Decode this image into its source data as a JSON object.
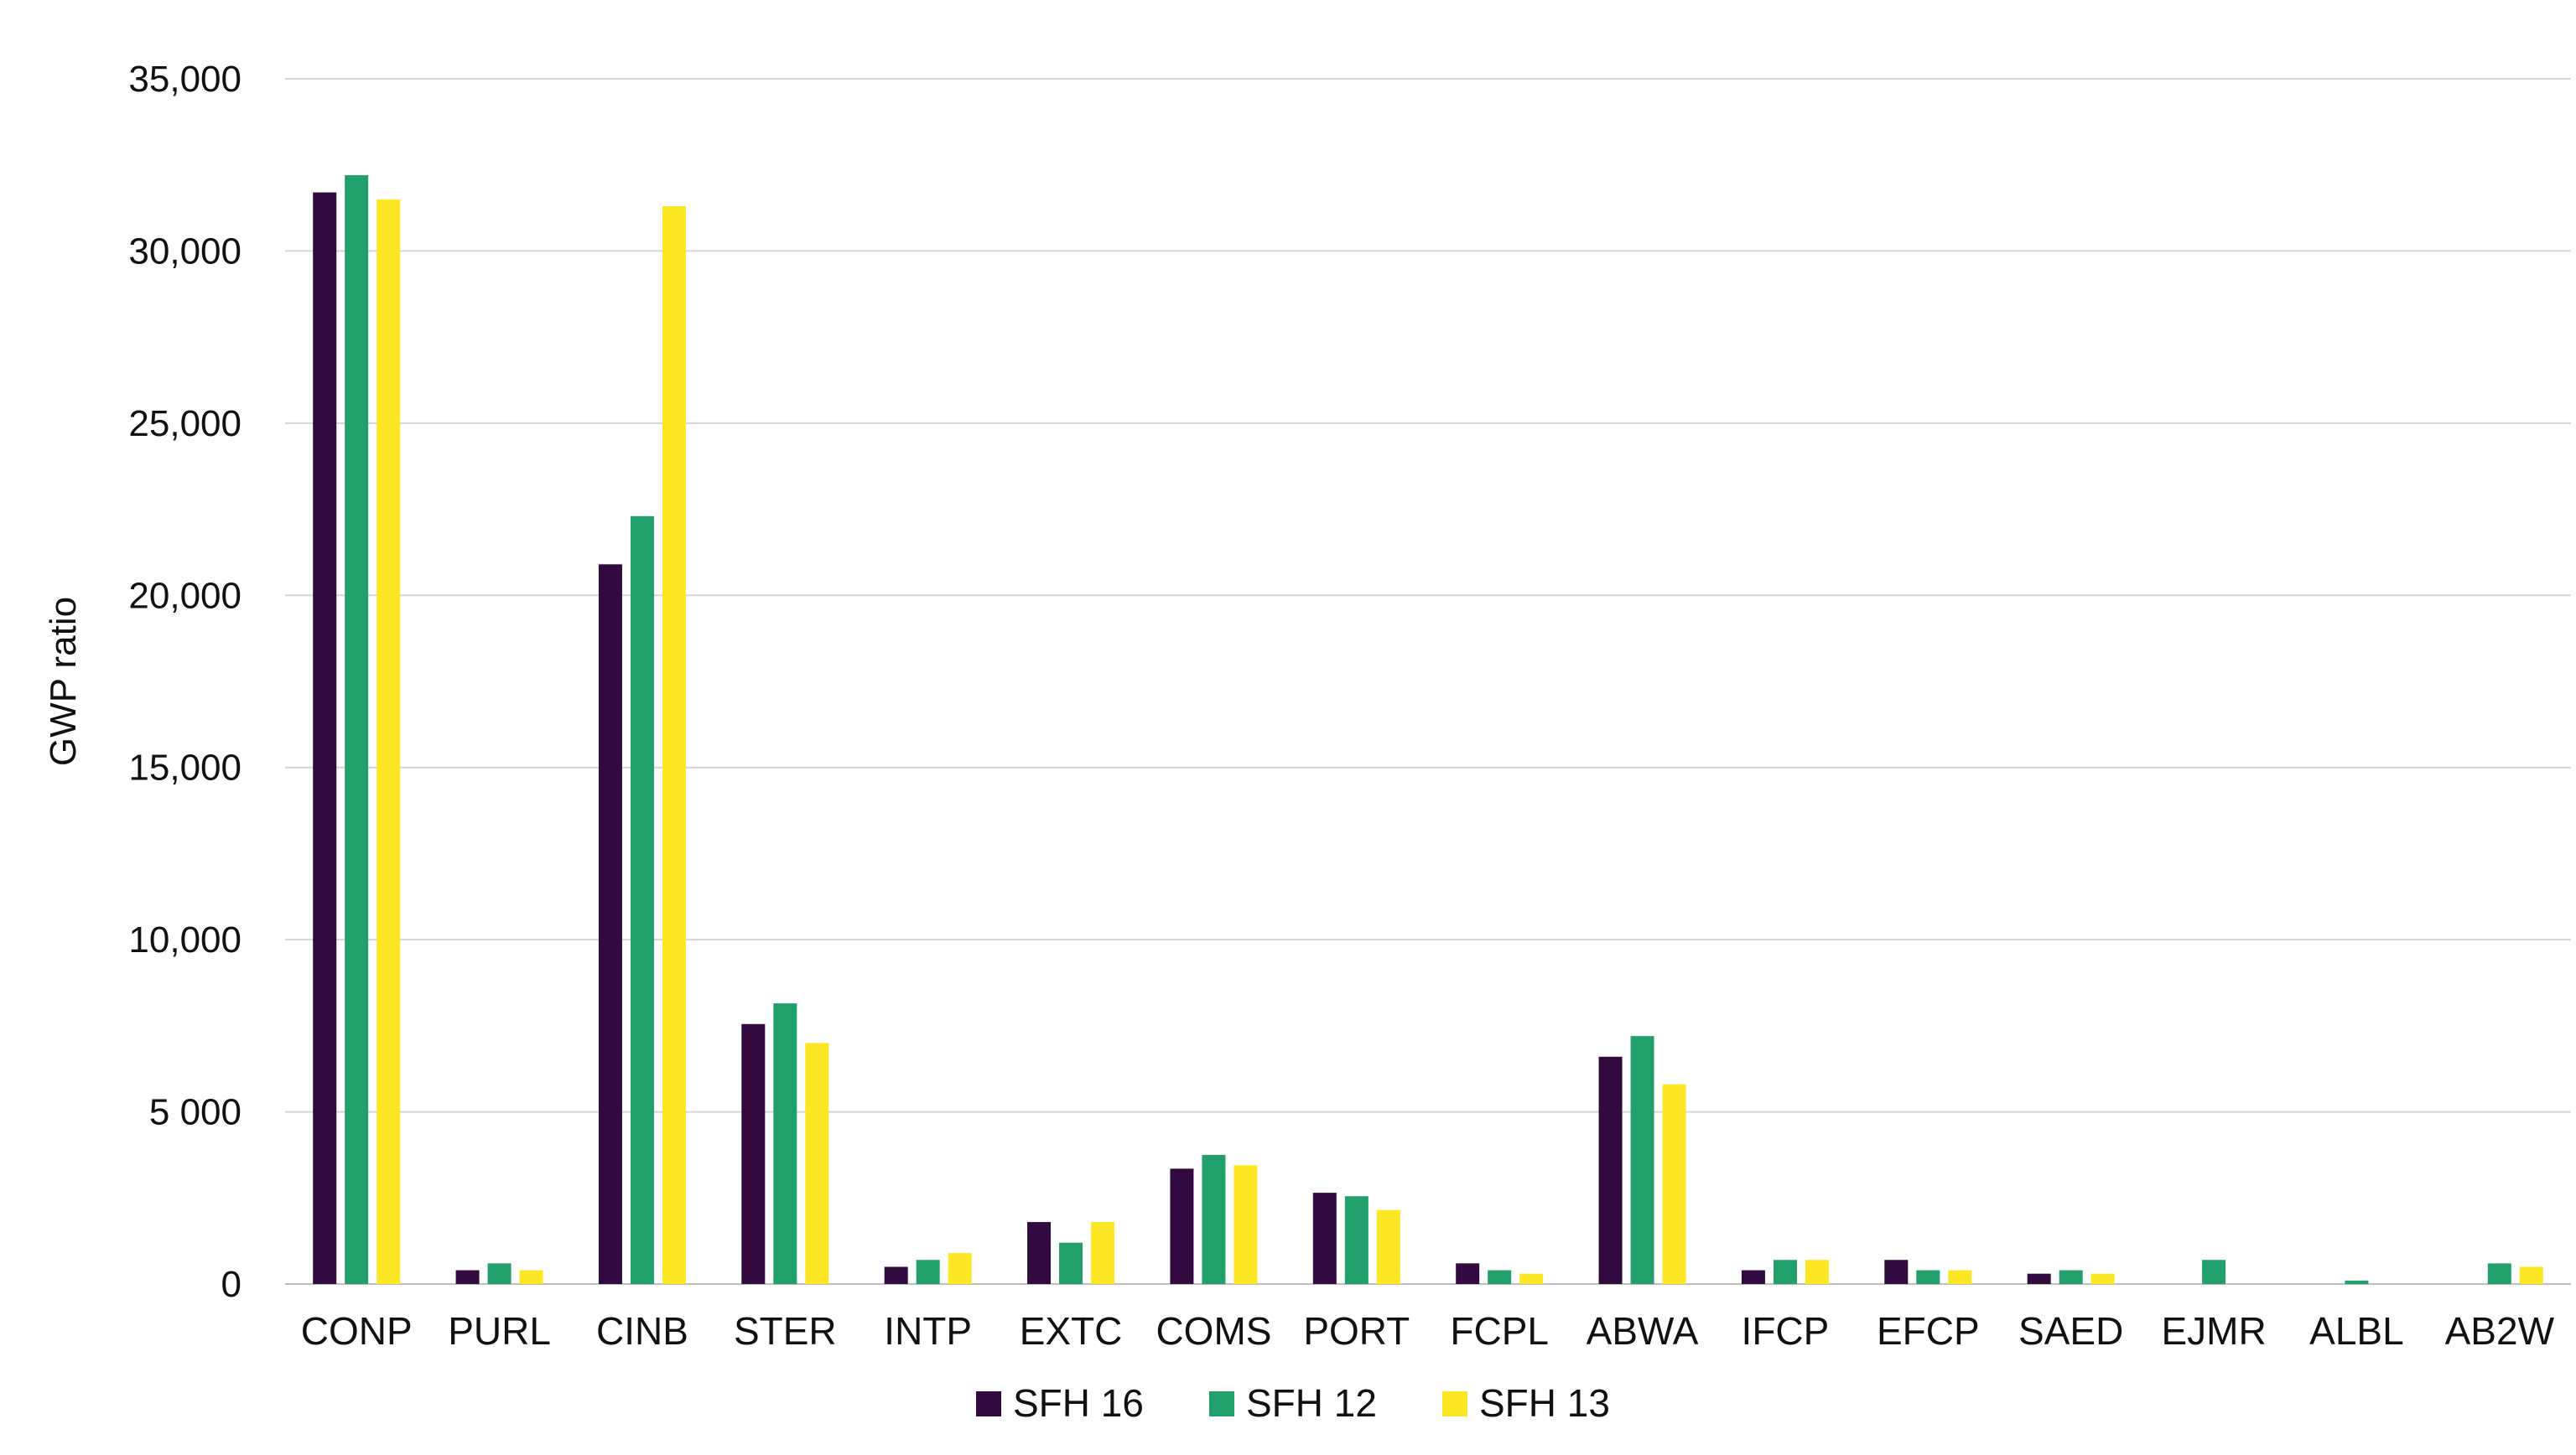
{
  "chart_data": {
    "type": "bar",
    "title": "",
    "xlabel": "",
    "ylabel": "GWP ratio",
    "ylim": [
      0,
      35000
    ],
    "y_ticks": [
      0,
      5000,
      10000,
      15000,
      20000,
      25000,
      30000,
      35000
    ],
    "y_tick_labels": [
      "0",
      "5 000",
      "10,000",
      "15,000",
      "20,000",
      "25,000",
      "30,000",
      "35,000"
    ],
    "grid": true,
    "legend_position": "bottom-center",
    "categories": [
      "CONP",
      "PURL",
      "CINB",
      "STER",
      "INTP",
      "EXTC",
      "COMS",
      "PORT",
      "FCPL",
      "ABWA",
      "IFCP",
      "EFCP",
      "SAED",
      "EJMR",
      "ALBL",
      "AB2W"
    ],
    "series": [
      {
        "name": "SFH 16",
        "color": "#330a3f",
        "values": [
          31700,
          400,
          20900,
          7550,
          500,
          1800,
          3350,
          2650,
          600,
          6600,
          400,
          700,
          300,
          0,
          0,
          0
        ]
      },
      {
        "name": "SFH 12",
        "color": "#21a06b",
        "values": [
          32200,
          600,
          22300,
          8150,
          700,
          1200,
          3750,
          2550,
          400,
          7200,
          700,
          400,
          400,
          700,
          100,
          600
        ]
      },
      {
        "name": "SFH 13",
        "color": "#fde725",
        "values": [
          31500,
          400,
          31300,
          7000,
          900,
          1800,
          3450,
          2150,
          300,
          5800,
          700,
          400,
          300,
          0,
          0,
          500
        ]
      }
    ]
  }
}
